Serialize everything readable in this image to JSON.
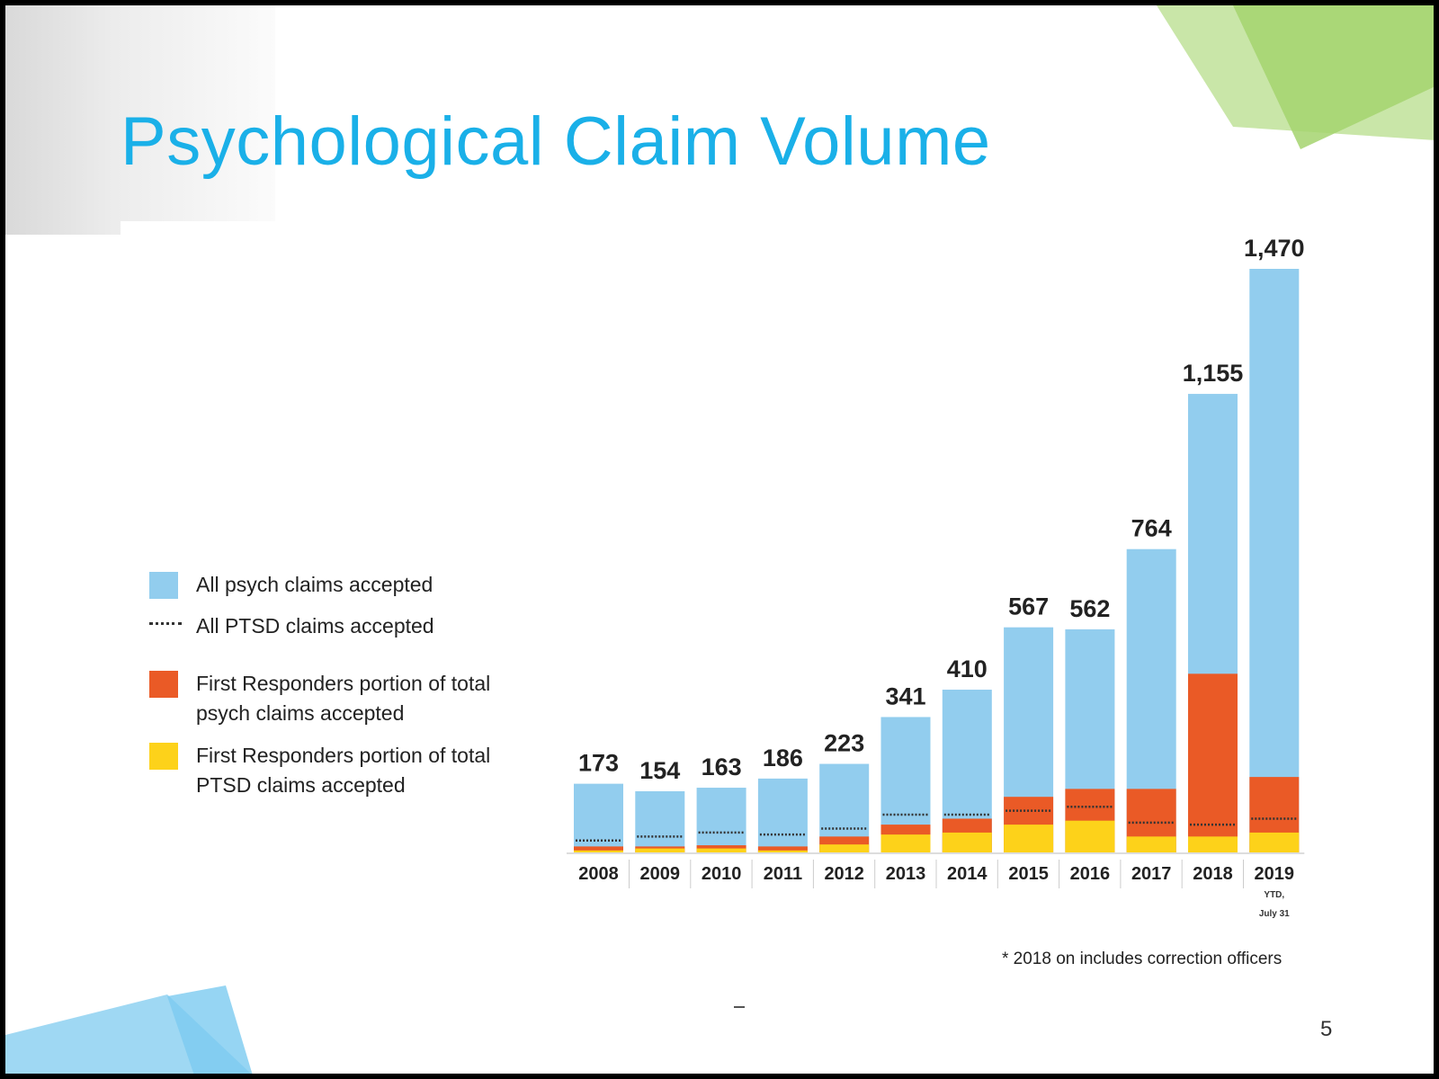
{
  "slide": {
    "title": "Psychological Claim Volume",
    "footnote": "* 2018 on includes correction officers",
    "page_number": "5"
  },
  "legend": [
    {
      "label": "All psych claims accepted",
      "color": "#92cdee",
      "kind": "box"
    },
    {
      "label": "All PTSD claims accepted",
      "color": "#333333",
      "kind": "dotted-line"
    },
    {
      "label_line1": "First Responders portion of total",
      "label_line2": "psych claims accepted",
      "color": "#ea5a26",
      "kind": "box"
    },
    {
      "label_line1": "First Responders portion of total",
      "label_line2": "PTSD claims accepted",
      "color": "#fdd21a",
      "kind": "box"
    }
  ],
  "colors": {
    "psych": "#92cdee",
    "first_responders_psych": "#ea5a26",
    "first_responders_ptsd": "#fdd21a",
    "ptsd_line": "#333333",
    "title": "#1ab0e8"
  },
  "chart_data": {
    "type": "bar",
    "categories": [
      "2008",
      "2009",
      "2010",
      "2011",
      "2012",
      "2013",
      "2014",
      "2015",
      "2016",
      "2017",
      "2018",
      "2019"
    ],
    "category_notes": {
      "2019": [
        "YTD,",
        "July 31"
      ]
    },
    "series": [
      {
        "name": "All psych claims accepted",
        "values": [
          173,
          154,
          163,
          186,
          223,
          341,
          410,
          567,
          562,
          764,
          1155,
          1470
        ]
      },
      {
        "name": "First Responders portion of total psych claims accepted",
        "values": [
          15,
          15,
          18,
          15,
          40,
          70,
          85,
          140,
          160,
          160,
          450,
          190
        ]
      },
      {
        "name": "First Responders portion of total PTSD claims accepted",
        "values": [
          5,
          10,
          10,
          5,
          20,
          45,
          50,
          70,
          80,
          40,
          40,
          50
        ]
      },
      {
        "name": "All PTSD claims accepted",
        "values": [
          30,
          40,
          50,
          45,
          60,
          95,
          95,
          105,
          115,
          75,
          70,
          85
        ]
      }
    ],
    "data_labels": [
      "173",
      "154",
      "163",
      "186",
      "223",
      "341",
      "410",
      "567",
      "562",
      "764",
      "1,155",
      "1,470"
    ],
    "ylim": [
      0,
      1470
    ],
    "grid": false,
    "legend_position": "left"
  }
}
